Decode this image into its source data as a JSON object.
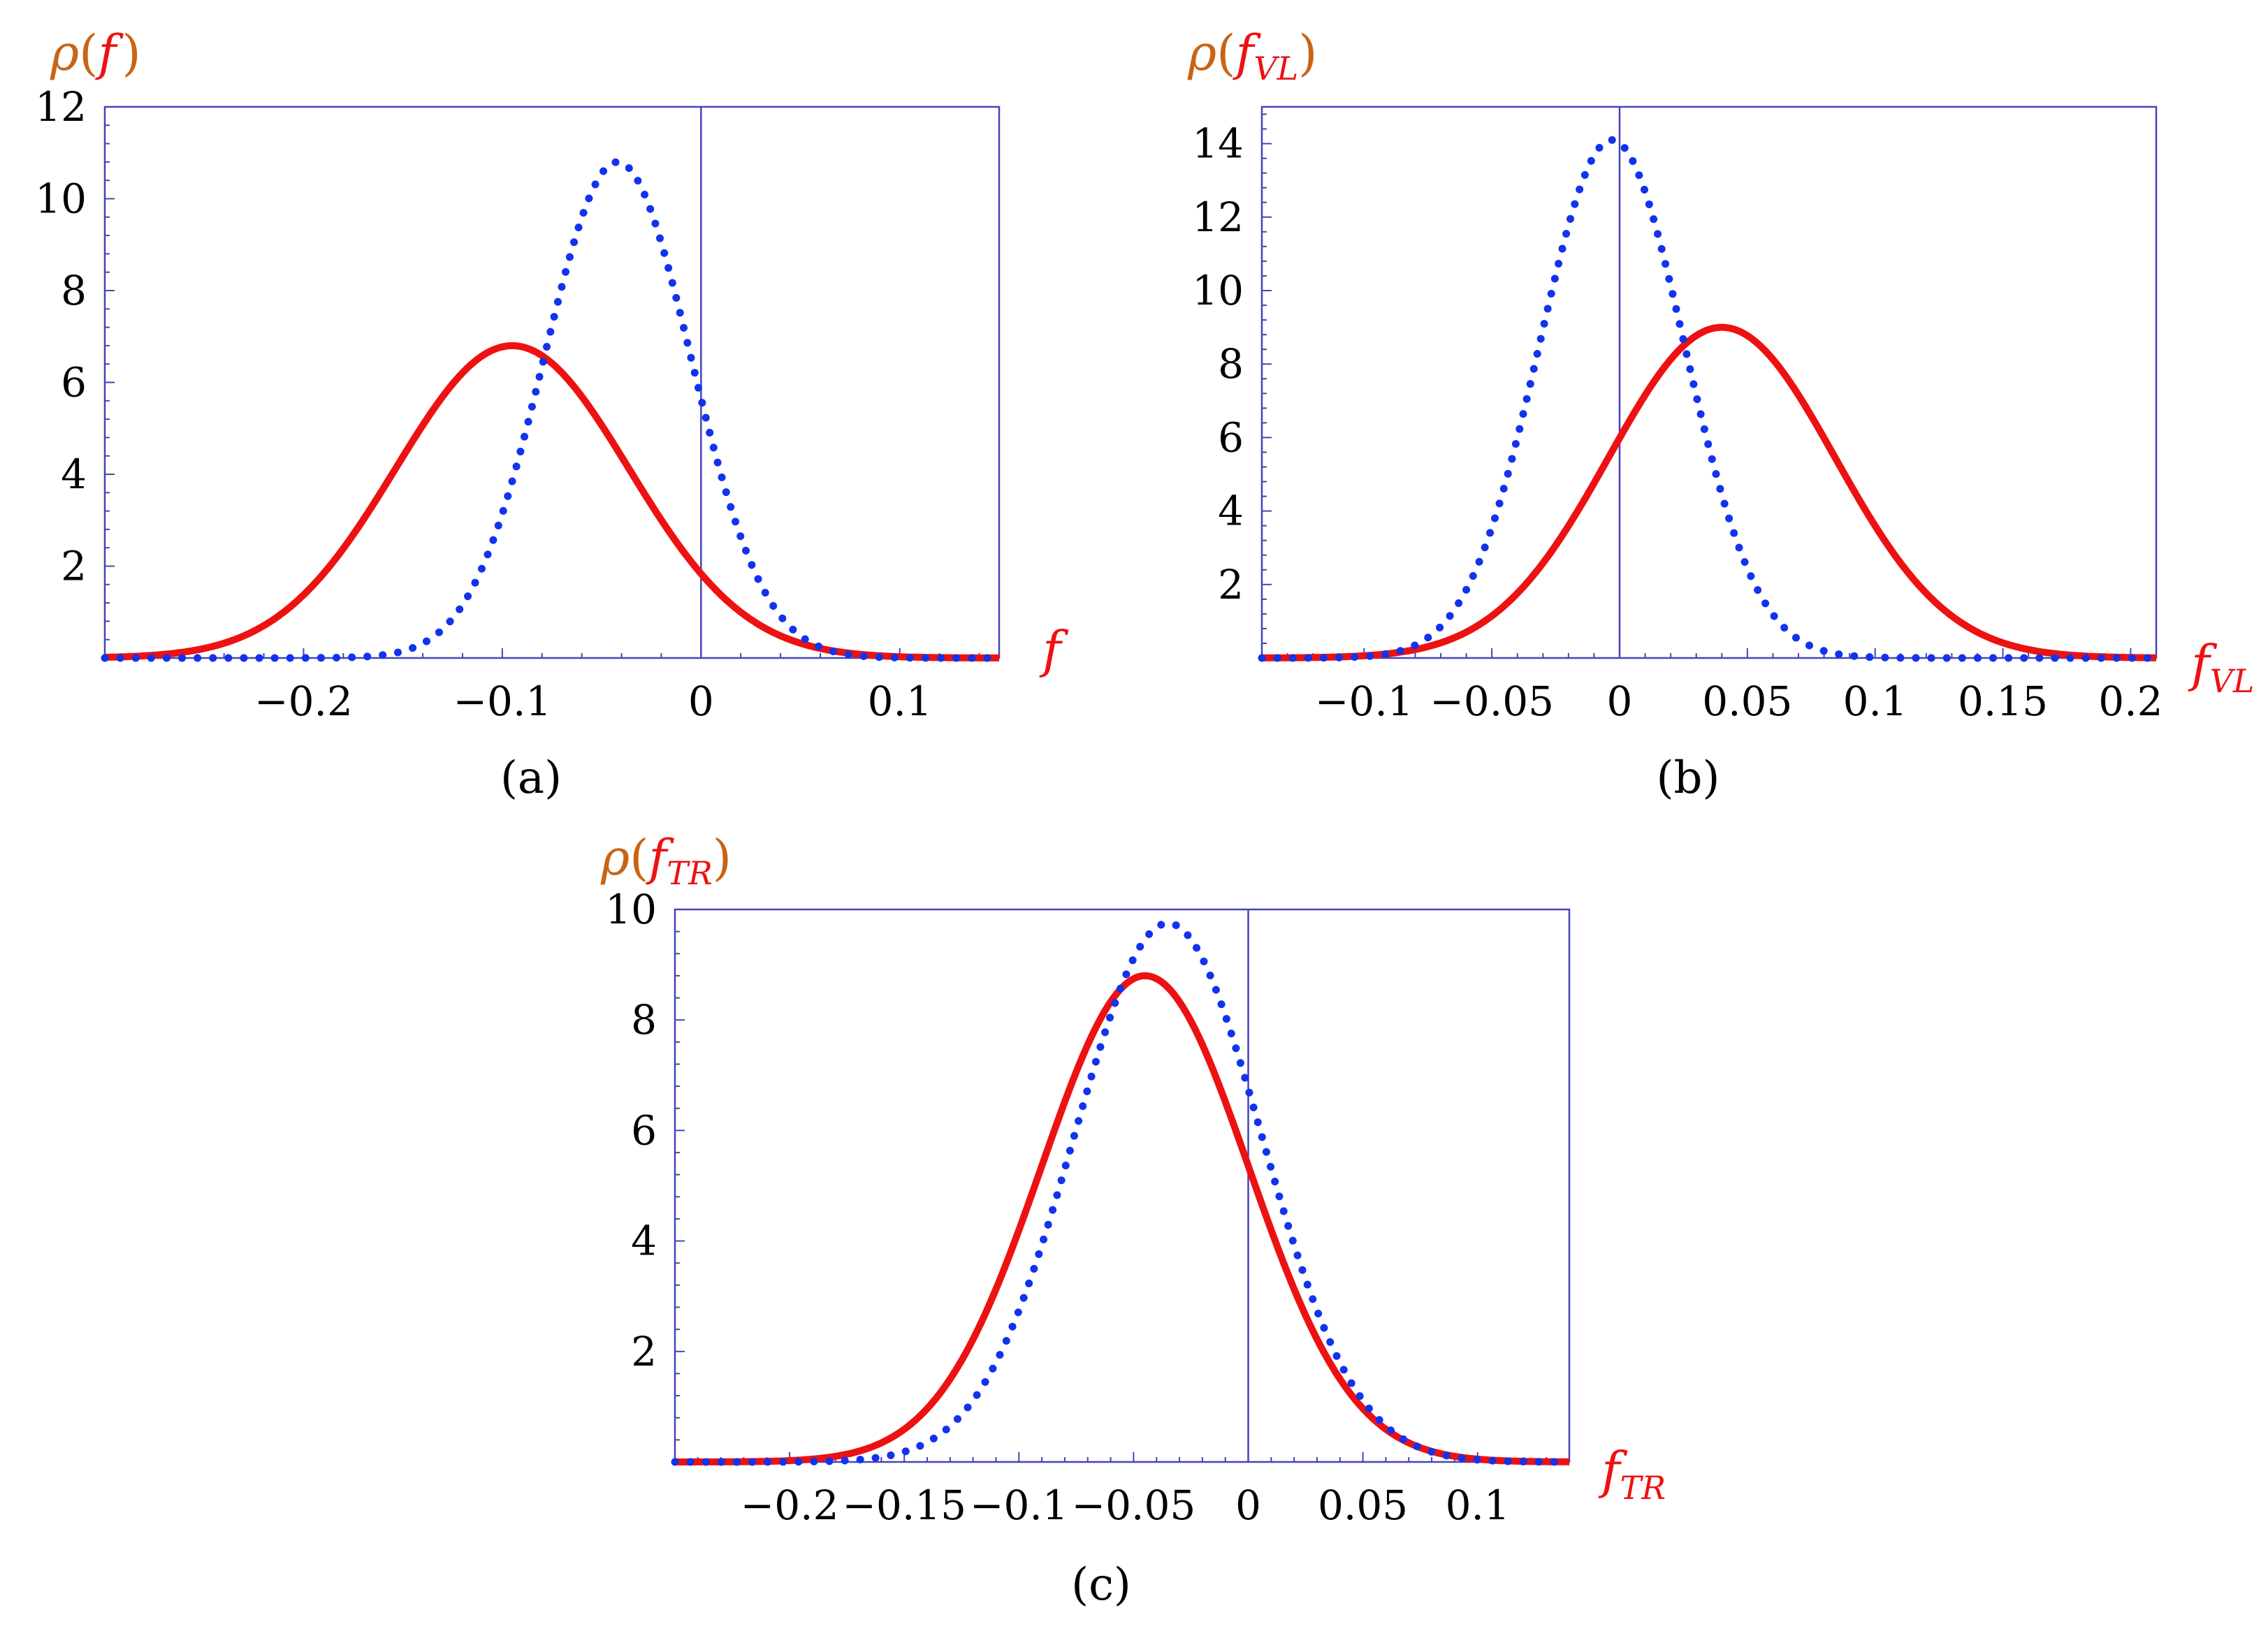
{
  "figure": {
    "panel_labels": [
      "(a)",
      "(b)",
      "(c)"
    ]
  },
  "colors": {
    "solid": "#ee1111",
    "dotted": "#1133ee",
    "frame": "#4444bb",
    "ylabel_rho": "#c86414",
    "xlabel": "#ee1111"
  },
  "chart_data": [
    {
      "type": "line",
      "title": "(a)",
      "xlabel": "f",
      "ylabel": {
        "rho": "ρ",
        "open": "(",
        "var": "f",
        "sub": "",
        "close": ")"
      },
      "xlim": [
        -0.3,
        0.15
      ],
      "ylim": [
        0,
        12
      ],
      "xticks": [
        -0.2,
        -0.1,
        0,
        0.1
      ],
      "xtick_labels": [
        "−0.2",
        "−0.1",
        "0",
        "0.1"
      ],
      "yticks": [
        2,
        4,
        6,
        8,
        10,
        12
      ],
      "ytick_labels": [
        "2",
        "4",
        "6",
        "8",
        "10",
        "12"
      ],
      "series": [
        {
          "name": "solid",
          "style": "solid",
          "distribution": "gaussian",
          "peak_x": -0.095,
          "peak_y": 6.8,
          "sigma": 0.0587
        },
        {
          "name": "dotted",
          "style": "dotted",
          "distribution": "gaussian",
          "peak_x": -0.042,
          "peak_y": 10.8,
          "sigma": 0.0369
        }
      ]
    },
    {
      "type": "line",
      "title": "(b)",
      "xlabel": "f",
      "xlabel_sub": "VL",
      "ylabel": {
        "rho": "ρ",
        "open": "(",
        "var": "f",
        "sub": "VL",
        "close": ")"
      },
      "xlim": [
        -0.14,
        0.21
      ],
      "ylim": [
        0,
        15
      ],
      "xticks": [
        -0.1,
        -0.05,
        0,
        0.05,
        0.1,
        0.15,
        0.2
      ],
      "xtick_labels": [
        "−0.1",
        "−0.05",
        "0",
        "0.05",
        "0.1",
        "0.15",
        "0.2"
      ],
      "yticks": [
        2,
        4,
        6,
        8,
        10,
        12,
        14
      ],
      "ytick_labels": [
        "2",
        "4",
        "6",
        "8",
        "10",
        "12",
        "14"
      ],
      "series": [
        {
          "name": "solid",
          "style": "solid",
          "distribution": "gaussian",
          "peak_x": 0.04,
          "peak_y": 9.0,
          "sigma": 0.0443
        },
        {
          "name": "dotted",
          "style": "dotted",
          "distribution": "gaussian",
          "peak_x": -0.003,
          "peak_y": 14.1,
          "sigma": 0.0283
        }
      ]
    },
    {
      "type": "line",
      "title": "(c)",
      "xlabel": "f",
      "xlabel_sub": "TR",
      "ylabel": {
        "rho": "ρ",
        "open": "(",
        "var": "f",
        "sub": "TR",
        "close": ")"
      },
      "xlim": [
        -0.25,
        0.14
      ],
      "ylim": [
        0,
        10
      ],
      "xticks": [
        -0.2,
        -0.15,
        -0.1,
        -0.05,
        0,
        0.05,
        0.1
      ],
      "xtick_labels": [
        "−0.2",
        "−0.15",
        "−0.1",
        "−0.05",
        "0",
        "0.05",
        "0.1"
      ],
      "yticks": [
        2,
        4,
        6,
        8,
        10
      ],
      "ytick_labels": [
        "2",
        "4",
        "6",
        "8",
        "10"
      ],
      "series": [
        {
          "name": "solid",
          "style": "solid",
          "distribution": "gaussian",
          "peak_x": -0.045,
          "peak_y": 8.8,
          "sigma": 0.0452
        },
        {
          "name": "dotted",
          "style": "dotted",
          "distribution": "gaussian",
          "peak_x": -0.035,
          "peak_y": 9.75,
          "sigma": 0.0408
        }
      ]
    }
  ]
}
